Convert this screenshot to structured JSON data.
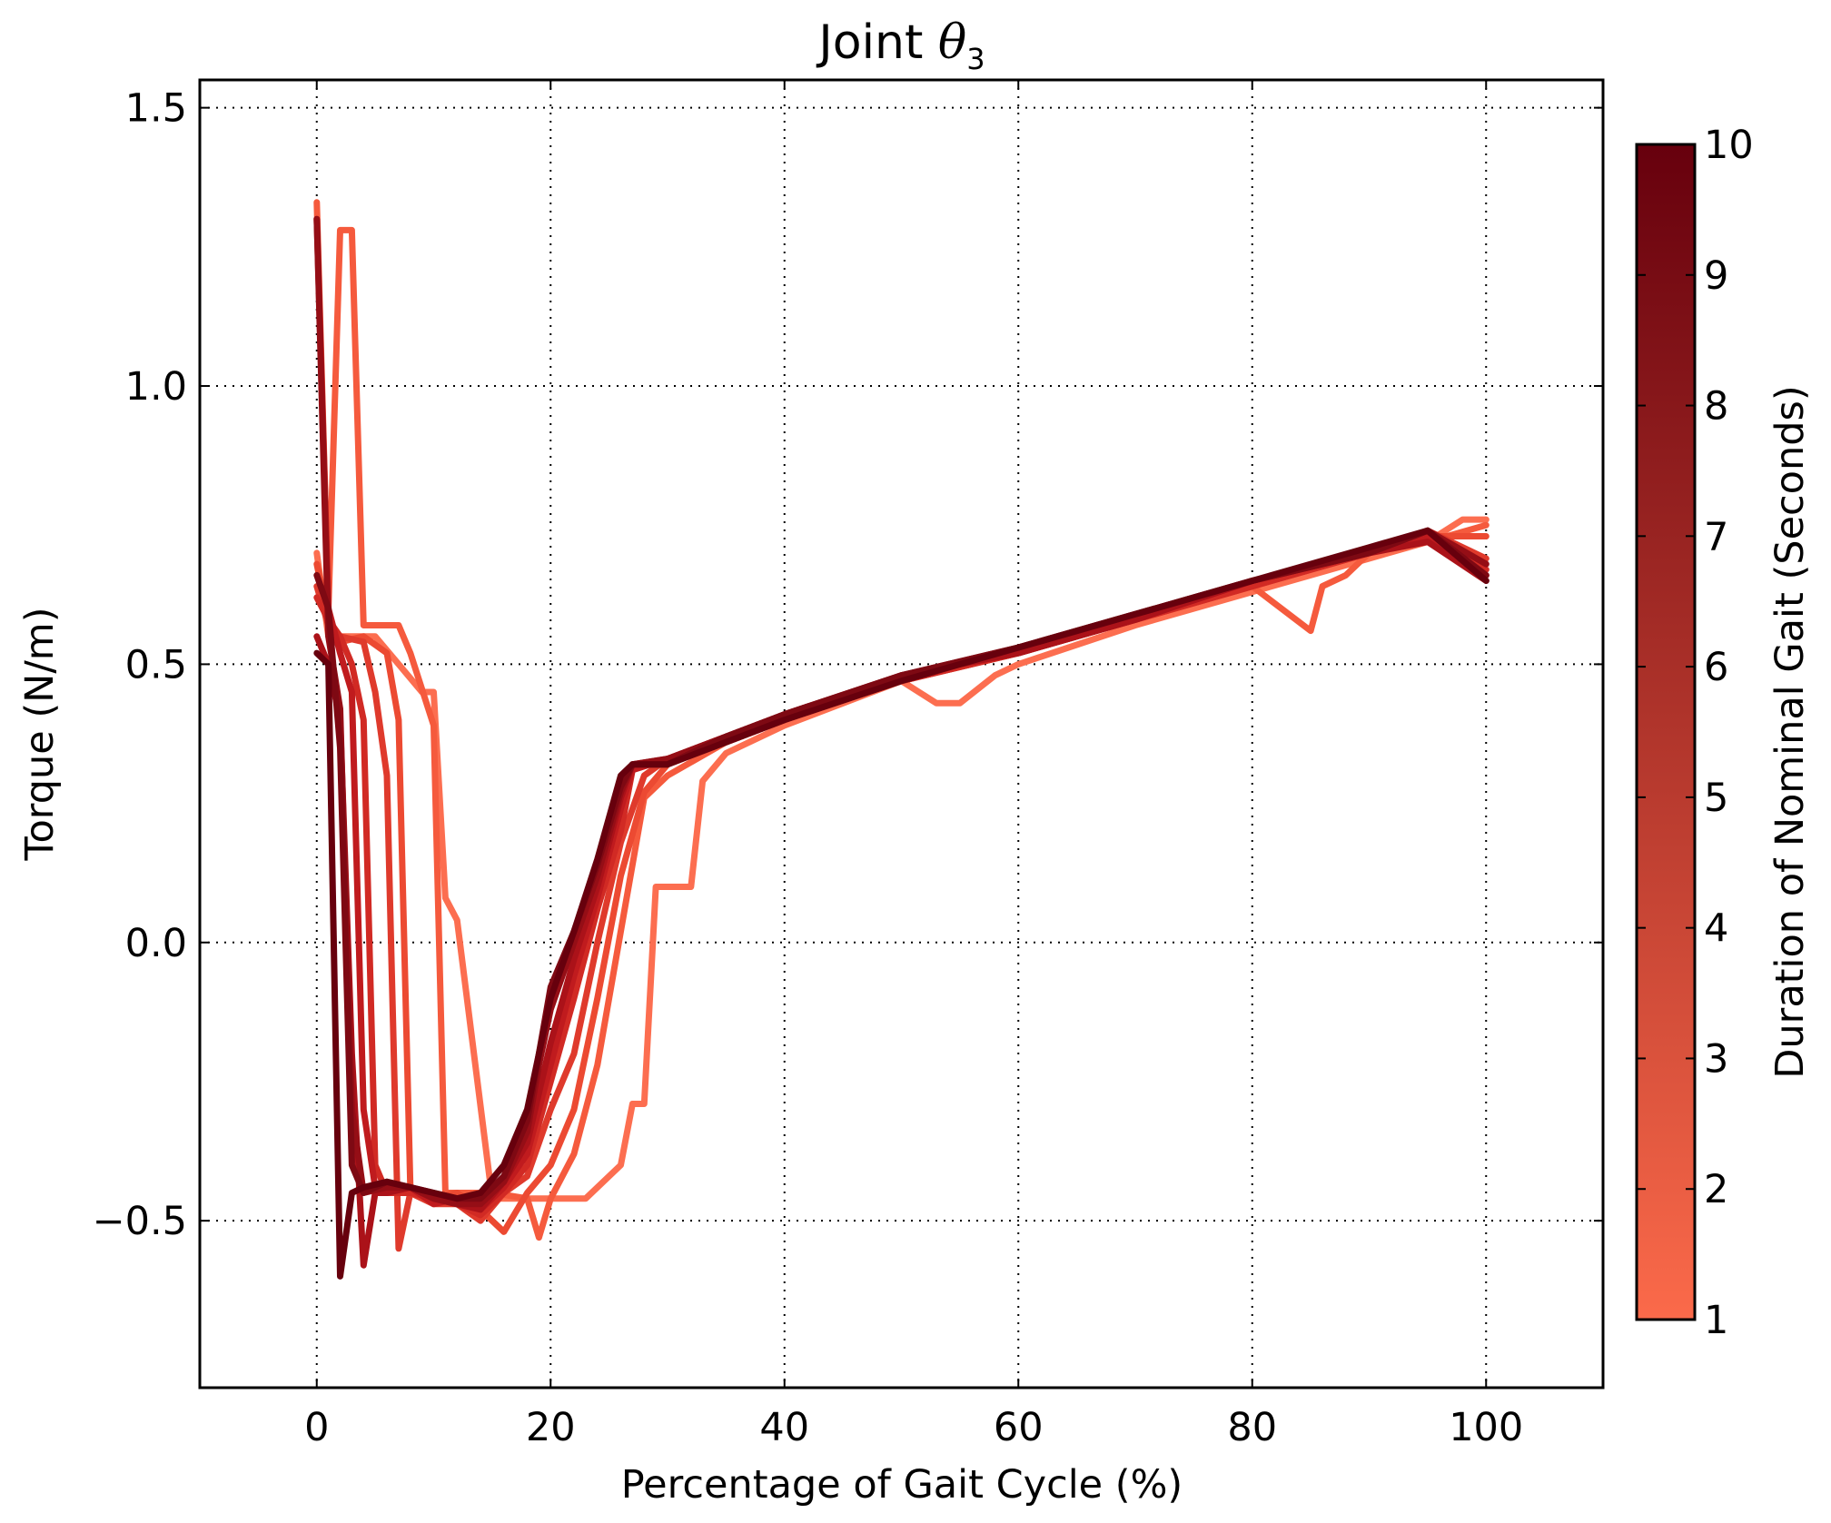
{
  "chart_data": {
    "type": "line",
    "title_prefix": "Joint ",
    "title_symbol": "θ",
    "title_subscript": "3",
    "xlabel": "Percentage of Gait Cycle (%)",
    "ylabel": "Torque (N/m)",
    "xlim": [
      -10,
      110
    ],
    "ylim": [
      -0.8,
      1.55
    ],
    "grid": true,
    "x_ticks": [
      0,
      20,
      40,
      60,
      80,
      100
    ],
    "x_tick_labels": [
      "0",
      "20",
      "40",
      "60",
      "80",
      "100"
    ],
    "y_ticks": [
      1.5,
      1.0,
      0.5,
      0.0,
      -0.5
    ],
    "y_tick_labels": [
      "1.5",
      "1.0",
      "0.5",
      "0.0",
      "−0.5"
    ],
    "colorbar": {
      "label": "Duration of Nominal Gait (Seconds)",
      "min": 1,
      "max": 10,
      "ticks": [
        1,
        2,
        3,
        4,
        5,
        6,
        7,
        8,
        9,
        10
      ],
      "tick_labels": [
        "1",
        "2",
        "3",
        "4",
        "5",
        "6",
        "7",
        "8",
        "9",
        "10"
      ],
      "color_low": "#fb6a4a",
      "color_high": "#67000d"
    },
    "series": [
      {
        "duration": 1,
        "color": "#fc6e50",
        "x": [
          0,
          1,
          2,
          5,
          7,
          9,
          10,
          11,
          12,
          15,
          18,
          20,
          23,
          26,
          27,
          28,
          29,
          30,
          32,
          33,
          35,
          40,
          50,
          53,
          55,
          58,
          60,
          70,
          80,
          90,
          95,
          98,
          100
        ],
        "y": [
          0.7,
          0.55,
          0.55,
          0.55,
          0.5,
          0.45,
          0.45,
          0.08,
          0.04,
          -0.46,
          -0.46,
          -0.46,
          -0.46,
          -0.4,
          -0.29,
          -0.29,
          0.1,
          0.1,
          0.1,
          0.29,
          0.34,
          0.39,
          0.47,
          0.43,
          0.43,
          0.48,
          0.5,
          0.57,
          0.63,
          0.69,
          0.72,
          0.76,
          0.76
        ]
      },
      {
        "duration": 2,
        "color": "#f55a3d",
        "x": [
          0,
          1,
          2,
          3,
          4,
          7,
          8,
          10,
          11,
          12,
          15,
          18,
          19,
          20,
          22,
          24,
          26,
          28,
          30,
          35,
          40,
          50,
          60,
          70,
          80,
          85,
          86,
          88,
          90,
          95,
          100
        ],
        "y": [
          1.33,
          0.6,
          1.28,
          1.28,
          0.57,
          0.57,
          0.52,
          0.39,
          -0.45,
          -0.45,
          -0.45,
          -0.46,
          -0.53,
          -0.46,
          -0.38,
          -0.22,
          0.02,
          0.26,
          0.3,
          0.36,
          0.4,
          0.48,
          0.52,
          0.58,
          0.64,
          0.56,
          0.64,
          0.66,
          0.7,
          0.72,
          0.75
        ]
      },
      {
        "duration": 3,
        "color": "#ec4a32",
        "x": [
          0,
          1,
          2,
          4,
          6,
          7,
          8,
          10,
          12,
          14,
          16,
          18,
          20,
          22,
          24,
          26,
          28,
          30,
          35,
          40,
          50,
          60,
          70,
          80,
          90,
          95,
          100
        ],
        "y": [
          0.68,
          0.58,
          0.54,
          0.55,
          0.52,
          0.4,
          -0.44,
          -0.46,
          -0.45,
          -0.48,
          -0.52,
          -0.45,
          -0.4,
          -0.3,
          -0.1,
          0.12,
          0.27,
          0.32,
          0.36,
          0.4,
          0.47,
          0.52,
          0.58,
          0.64,
          0.7,
          0.73,
          0.73
        ]
      },
      {
        "duration": 4,
        "color": "#df3a2c",
        "x": [
          0,
          1,
          2,
          4,
          5,
          6,
          7,
          8,
          10,
          12,
          14,
          16,
          18,
          20,
          22,
          24,
          26,
          28,
          30,
          35,
          40,
          50,
          60,
          70,
          80,
          90,
          95,
          100
        ],
        "y": [
          0.64,
          0.57,
          0.55,
          0.54,
          0.45,
          0.3,
          -0.55,
          -0.45,
          -0.47,
          -0.47,
          -0.5,
          -0.45,
          -0.42,
          -0.3,
          -0.2,
          0.0,
          0.18,
          0.3,
          0.33,
          0.36,
          0.4,
          0.47,
          0.52,
          0.58,
          0.64,
          0.7,
          0.74,
          0.69
        ]
      },
      {
        "duration": 5,
        "color": "#d12a24",
        "x": [
          0,
          1,
          2,
          3,
          4,
          5,
          6,
          8,
          10,
          12,
          14,
          16,
          18,
          20,
          22,
          24,
          26,
          27,
          30,
          35,
          40,
          50,
          60,
          70,
          80,
          90,
          95,
          100
        ],
        "y": [
          0.62,
          0.58,
          0.55,
          0.5,
          0.4,
          -0.4,
          -0.45,
          -0.45,
          -0.46,
          -0.47,
          -0.49,
          -0.45,
          -0.4,
          -0.25,
          -0.1,
          0.06,
          0.2,
          0.31,
          0.33,
          0.36,
          0.4,
          0.47,
          0.52,
          0.58,
          0.64,
          0.7,
          0.73,
          0.67
        ]
      },
      {
        "duration": 6,
        "color": "#c01b1e",
        "x": [
          0,
          1,
          2,
          3,
          4,
          5,
          6,
          8,
          10,
          12,
          14,
          16,
          18,
          20,
          22,
          24,
          26,
          27,
          30,
          35,
          40,
          50,
          60,
          70,
          80,
          90,
          95,
          100
        ],
        "y": [
          1.3,
          0.6,
          0.52,
          0.45,
          -0.3,
          -0.44,
          -0.45,
          -0.44,
          -0.47,
          -0.46,
          -0.48,
          -0.44,
          -0.38,
          -0.22,
          -0.06,
          0.08,
          0.24,
          0.31,
          0.33,
          0.37,
          0.41,
          0.48,
          0.52,
          0.58,
          0.65,
          0.7,
          0.73,
          0.66
        ]
      },
      {
        "duration": 7,
        "color": "#ab1219",
        "x": [
          0,
          1,
          2,
          3,
          4,
          5,
          6,
          8,
          10,
          12,
          14,
          16,
          18,
          20,
          22,
          24,
          26,
          27,
          30,
          35,
          40,
          50,
          60,
          70,
          80,
          90,
          95,
          100
        ],
        "y": [
          0.55,
          0.5,
          0.4,
          -0.2,
          -0.58,
          -0.45,
          -0.45,
          -0.44,
          -0.46,
          -0.47,
          -0.48,
          -0.43,
          -0.36,
          -0.18,
          -0.03,
          0.1,
          0.26,
          0.32,
          0.33,
          0.37,
          0.41,
          0.48,
          0.52,
          0.58,
          0.65,
          0.7,
          0.72,
          0.65
        ]
      },
      {
        "duration": 8,
        "color": "#950e16",
        "x": [
          0,
          1,
          2,
          3,
          4,
          6,
          8,
          10,
          12,
          14,
          16,
          18,
          19,
          20,
          22,
          24,
          26,
          27,
          30,
          35,
          40,
          50,
          60,
          70,
          80,
          90,
          95,
          100
        ],
        "y": [
          1.3,
          0.55,
          0.42,
          -0.3,
          -0.45,
          -0.44,
          -0.44,
          -0.46,
          -0.47,
          -0.47,
          -0.43,
          -0.34,
          -0.22,
          -0.12,
          0.0,
          0.12,
          0.27,
          0.32,
          0.33,
          0.37,
          0.41,
          0.48,
          0.53,
          0.59,
          0.65,
          0.7,
          0.74,
          0.68
        ]
      },
      {
        "duration": 9,
        "color": "#7e0913",
        "x": [
          0,
          1,
          2,
          3,
          4,
          6,
          8,
          10,
          12,
          14,
          16,
          18,
          19,
          20,
          22,
          24,
          26,
          27,
          30,
          35,
          40,
          50,
          60,
          70,
          80,
          90,
          95,
          100
        ],
        "y": [
          0.66,
          0.6,
          0.35,
          -0.4,
          -0.45,
          -0.43,
          -0.44,
          -0.45,
          -0.46,
          -0.46,
          -0.42,
          -0.32,
          -0.2,
          -0.08,
          0.02,
          0.14,
          0.28,
          0.32,
          0.32,
          0.37,
          0.41,
          0.48,
          0.53,
          0.59,
          0.65,
          0.7,
          0.74,
          0.66
        ]
      },
      {
        "duration": 10,
        "color": "#67000d",
        "x": [
          0,
          1,
          2,
          3,
          4,
          6,
          8,
          10,
          12,
          14,
          16,
          18,
          19,
          20,
          22,
          24,
          26,
          27,
          30,
          35,
          40,
          50,
          60,
          70,
          80,
          90,
          95,
          100
        ],
        "y": [
          0.52,
          0.5,
          -0.6,
          -0.45,
          -0.44,
          -0.43,
          -0.44,
          -0.45,
          -0.46,
          -0.45,
          -0.4,
          -0.3,
          -0.2,
          -0.1,
          0.02,
          0.15,
          0.3,
          0.32,
          0.32,
          0.36,
          0.4,
          0.47,
          0.53,
          0.59,
          0.65,
          0.71,
          0.74,
          0.65
        ]
      }
    ]
  }
}
